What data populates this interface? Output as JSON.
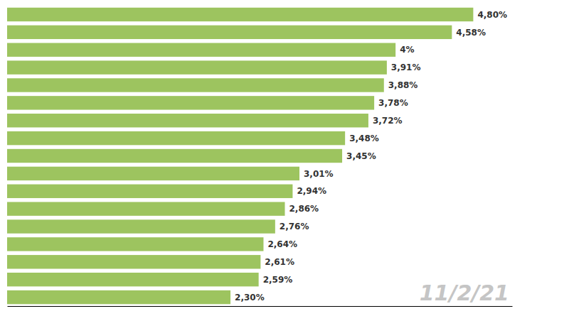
{
  "chart_data": {
    "type": "bar",
    "orientation": "horizontal",
    "values": [
      4.8,
      4.58,
      4.0,
      3.91,
      3.88,
      3.78,
      3.72,
      3.48,
      3.45,
      3.01,
      2.94,
      2.86,
      2.76,
      2.64,
      2.61,
      2.59,
      2.3
    ],
    "value_labels": [
      "4,80%",
      "4,58%",
      "4%",
      "3,91%",
      "3,88%",
      "3,78%",
      "3,72%",
      "3,48%",
      "3,45%",
      "3,01%",
      "2,94%",
      "2,86%",
      "2,76%",
      "2,64%",
      "2,61%",
      "2,59%",
      "2,30%"
    ],
    "color": "#9DC45F",
    "xlim": [
      0,
      5.2
    ],
    "xticks": [],
    "tick_labels": false,
    "grid": false,
    "data_labels": true,
    "annotations": [
      "11/2/21"
    ]
  }
}
